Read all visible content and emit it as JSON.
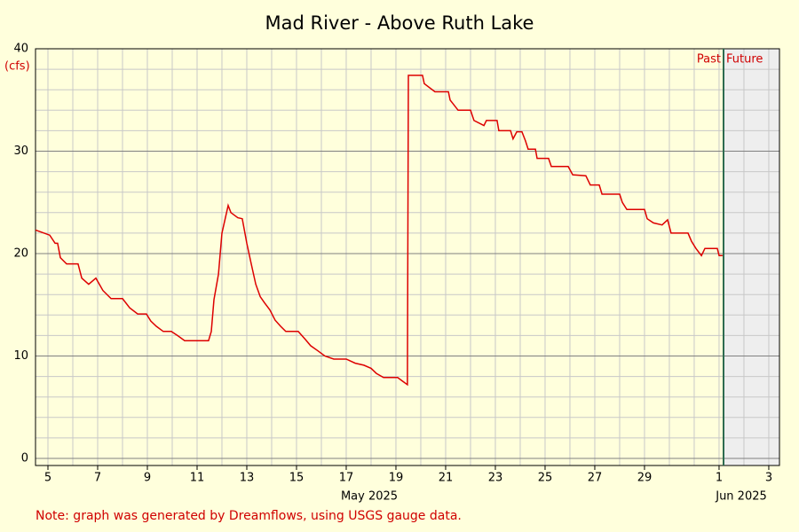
{
  "chart_data": {
    "type": "line",
    "title": "Mad River - Above Ruth Lake",
    "y_unit_label": "(cfs)",
    "month_labels": [
      "May 2025",
      "Jun 2025"
    ],
    "past_label": "Past",
    "future_label": "Future",
    "note": "Note: graph was generated by Dreamflows, using USGS gauge data.",
    "xlim": [
      4.5,
      34.43
    ],
    "ylim": [
      0,
      40
    ],
    "xticks": [
      5,
      7,
      9,
      11,
      13,
      15,
      17,
      19,
      21,
      23,
      25,
      27,
      29,
      {
        "value": 32,
        "label": "1"
      },
      {
        "value": 34,
        "label": "3"
      }
    ],
    "yticks": [
      0,
      10,
      20,
      30,
      40
    ],
    "grid": true,
    "minor_grid": true,
    "now": 32.18,
    "series": [
      {
        "color": "#dd0000",
        "x": [
          4.5,
          5.07,
          5.29,
          5.39,
          5.5,
          5.75,
          6.21,
          6.36,
          6.64,
          6.93,
          7.21,
          7.54,
          8.0,
          8.29,
          8.61,
          8.96,
          9.14,
          9.36,
          9.64,
          9.96,
          10.21,
          10.5,
          10.93,
          11.46,
          11.57,
          11.68,
          11.86,
          12.0,
          12.14,
          12.25,
          12.36,
          12.64,
          12.82,
          13.0,
          13.18,
          13.36,
          13.54,
          13.71,
          13.93,
          14.14,
          14.36,
          14.57,
          15.07,
          15.36,
          15.57,
          15.86,
          16.14,
          16.5,
          17.0,
          17.36,
          17.71,
          18.0,
          18.21,
          18.5,
          19.07,
          19.29,
          19.46,
          19.5,
          20.07,
          20.14,
          20.57,
          21.11,
          21.18,
          21.5,
          22.0,
          22.14,
          22.54,
          22.64,
          23.07,
          23.14,
          23.61,
          23.71,
          23.86,
          24.07,
          24.21,
          24.32,
          24.61,
          24.68,
          25.14,
          25.25,
          25.93,
          26.11,
          26.64,
          26.82,
          27.18,
          27.29,
          28.0,
          28.11,
          28.29,
          29.0,
          29.11,
          29.36,
          29.71,
          29.93,
          30.07,
          30.75,
          30.89,
          31.07,
          31.29,
          31.43,
          31.93,
          32.0,
          32.14
        ],
        "values": [
          22.3,
          21.8,
          21.0,
          21.0,
          19.6,
          19.0,
          19.0,
          17.6,
          17.0,
          17.6,
          16.4,
          15.6,
          15.6,
          14.7,
          14.1,
          14.1,
          13.4,
          12.9,
          12.4,
          12.4,
          12.0,
          11.5,
          11.5,
          11.5,
          12.4,
          15.5,
          18.0,
          22.0,
          23.5,
          24.7,
          24.0,
          23.5,
          23.4,
          21.0,
          19.0,
          17.0,
          15.8,
          15.2,
          14.5,
          13.5,
          12.9,
          12.4,
          12.4,
          11.6,
          11.0,
          10.5,
          10.0,
          9.7,
          9.7,
          9.3,
          9.1,
          8.8,
          8.3,
          7.9,
          7.9,
          7.5,
          7.2,
          37.4,
          37.4,
          36.6,
          35.8,
          35.8,
          35.0,
          34.0,
          34.0,
          33.0,
          32.5,
          33.0,
          33.0,
          32.0,
          32.0,
          31.2,
          31.9,
          31.9,
          31.0,
          30.2,
          30.2,
          29.3,
          29.3,
          28.5,
          28.5,
          27.7,
          27.6,
          26.7,
          26.7,
          25.8,
          25.8,
          25.0,
          24.3,
          24.3,
          23.4,
          23.0,
          22.8,
          23.3,
          22.0,
          22.0,
          21.2,
          20.5,
          19.8,
          20.5,
          20.5,
          19.8,
          19.8
        ]
      }
    ]
  }
}
